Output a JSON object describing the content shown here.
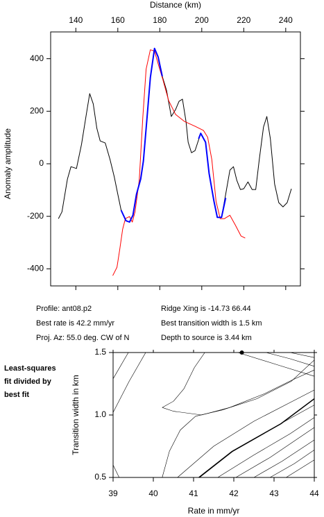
{
  "chart_data": [
    {
      "type": "line",
      "xlabel": "Distance (km)",
      "ylabel": "Anomaly amplitude",
      "xlim": [
        128,
        247
      ],
      "xticks": [
        140,
        160,
        180,
        200,
        220,
        240
      ],
      "ylim": [
        -465,
        502
      ],
      "yticks": [
        -400,
        -200,
        0,
        200,
        400
      ],
      "series": [
        {
          "name": "observed",
          "color": "#000000",
          "x": [
            131.7,
            133.4,
            136,
            137.7,
            140.3,
            142.7,
            145,
            146.6,
            148.3,
            150,
            151.6,
            154,
            156.3,
            158.3,
            160,
            161.6,
            163.9,
            165.6,
            167.2,
            168.9,
            170.9,
            172.2,
            173.9,
            175.5,
            177.5,
            179.2,
            181.2,
            183.2,
            185.5,
            187.5,
            189.2,
            190.8,
            192.5,
            193.5,
            195.1,
            196.8,
            199.5,
            201.8,
            203.5,
            205.8,
            207.4,
            209.4,
            211.4,
            213.4,
            215.1,
            216.7,
            218.4,
            220,
            222,
            224,
            225.7,
            227.4,
            229.4,
            231,
            232.7,
            234.7,
            236.7,
            238.7,
            240.7,
            242.7
          ],
          "values": [
            -209,
            -183,
            -58,
            -11,
            -18,
            74,
            188,
            267,
            228,
            135,
            87,
            79,
            16,
            -50,
            -116,
            -177,
            -217,
            -222,
            -196,
            -116,
            -58,
            11,
            175,
            328,
            439,
            407,
            333,
            280,
            180,
            206,
            238,
            246,
            161,
            82,
            42,
            50,
            116,
            82,
            -37,
            -143,
            -204,
            -204,
            -116,
            -24,
            -11,
            -63,
            -98,
            -95,
            -69,
            -98,
            -98,
            16,
            140,
            180,
            95,
            -77,
            -148,
            -164,
            -148,
            -95
          ]
        },
        {
          "name": "model",
          "color": "#ff0000",
          "x": [
            157.6,
            159.6,
            160.9,
            162.3,
            163.6,
            165.6,
            166.9,
            168.2,
            170.2,
            171.9,
            173.5,
            175.5,
            177.5,
            179.5,
            181.5,
            184.2,
            187.5,
            191.8,
            196.8,
            200.8,
            202.8,
            204.8,
            206.8,
            208.8,
            210.8,
            213.4,
            216.1,
            218.7,
            220.7
          ],
          "values": [
            -426,
            -394,
            -328,
            -249,
            -209,
            -201,
            -222,
            -183,
            -63,
            175,
            360,
            434,
            429,
            373,
            320,
            241,
            188,
            161,
            143,
            127,
            101,
            16,
            -143,
            -209,
            -209,
            -196,
            -235,
            -275,
            -283
          ]
        },
        {
          "name": "fit window",
          "color": "#0000ff",
          "x": [
            161.6,
            163.9,
            165.6,
            167.2,
            168.9,
            170.9,
            172.2,
            173.9,
            175.5,
            177.5,
            179.2,
            181.2,
            null,
            198.5,
            199.5,
            201.8,
            203.5,
            205.8,
            207.4,
            209.4,
            211.4
          ],
          "values": [
            -177,
            -217,
            -222,
            -196,
            -116,
            -58,
            11,
            175,
            328,
            439,
            407,
            333,
            null,
            95,
            116,
            82,
            -37,
            -143,
            -204,
            -204,
            -130
          ]
        }
      ]
    },
    {
      "type": "text",
      "lines_left": [
        "Profile: ant08.p2",
        "Best rate is 42.2 mm/yr",
        "Proj. Az: 55.0 deg. CW of N"
      ],
      "lines_right": [
        "Ridge Xing is -14.73 66.44",
        "Best transition width is 1.5 km",
        "Depth to source is   3.44 km"
      ],
      "note": [
        "Least-squares",
        "fit divided by",
        "best fit"
      ]
    },
    {
      "type": "contour",
      "xlabel": "Rate in mm/yr",
      "ylabel": "Transition width in km",
      "xlim": [
        39,
        44
      ],
      "xticks": [
        39,
        40,
        41,
        42,
        43,
        44
      ],
      "ylim": [
        0.5,
        1.5
      ],
      "yticks": [
        {
          "value": 0.5,
          "label": "0.5"
        },
        {
          "value": 1,
          "label": "1.0"
        },
        1.5
      ],
      "best_fit": {
        "x": 42.2,
        "y": 1.5
      },
      "contours": [
        {
          "x": [
            39,
            39.38
          ],
          "y": [
            1.29,
            1.5
          ]
        },
        {
          "x": [
            39,
            39.4,
            39.81
          ],
          "y": [
            1.02,
            1.27,
            1.5
          ]
        },
        {
          "x": [
            39.15,
            39
          ],
          "y": [
            0.5,
            0.6
          ]
        },
        {
          "x": [
            40.22,
            40.4,
            40.67,
            41.05,
            41.71,
            42.57,
            43.43,
            44
          ],
          "y": [
            0.5,
            0.71,
            0.88,
            0.99,
            1.04,
            1.13,
            1.27,
            1.44
          ]
        },
        {
          "x": [
            40.22,
            40.5,
            40.76,
            41.02,
            41.28
          ],
          "y": [
            1.06,
            1.11,
            1.21,
            1.38,
            1.5
          ]
        },
        {
          "x": [
            40.22,
            40.5,
            41.2,
            41.9,
            42.76,
            43.45,
            44
          ],
          "y": [
            1.06,
            1.03,
            1.0,
            1.06,
            1.17,
            1.28,
            1.36
          ]
        },
        {
          "x": [
            40.6,
            41.5,
            42.5,
            43.4,
            44
          ],
          "y": [
            0.5,
            0.75,
            0.95,
            1.1,
            1.2
          ]
        },
        {
          "x": [
            41.12,
            41.95,
            43.16,
            44
          ],
          "y": [
            0.5,
            0.71,
            0.93,
            1.08
          ]
        },
        {
          "x": [
            41.6,
            42.5,
            43.4,
            44
          ],
          "y": [
            0.5,
            0.68,
            0.85,
            0.98
          ]
        },
        {
          "x": [
            42.05,
            42.9,
            44
          ],
          "y": [
            0.5,
            0.66,
            0.9
          ]
        },
        {
          "x": [
            42.5,
            43.2,
            44
          ],
          "y": [
            0.5,
            0.63,
            0.8
          ]
        },
        {
          "x": [
            42.9,
            43.5,
            44
          ],
          "y": [
            0.5,
            0.61,
            0.72
          ]
        },
        {
          "x": [
            43.3,
            43.7,
            44
          ],
          "y": [
            0.5,
            0.58,
            0.64
          ]
        },
        {
          "x": [
            42.1,
            43.1,
            44
          ],
          "y": [
            1.5,
            1.4,
            1.31
          ]
        },
        {
          "x": [
            42.8,
            43.4,
            44
          ],
          "y": [
            1.5,
            1.45,
            1.39
          ]
        },
        {
          "x": [
            43.4,
            44
          ],
          "y": [
            1.5,
            1.46
          ]
        }
      ],
      "thick_contours": [
        {
          "x": [
            41.14,
            41.97,
            43.17,
            44
          ],
          "y": [
            0.5,
            0.71,
            0.93,
            1.13
          ]
        }
      ]
    }
  ]
}
